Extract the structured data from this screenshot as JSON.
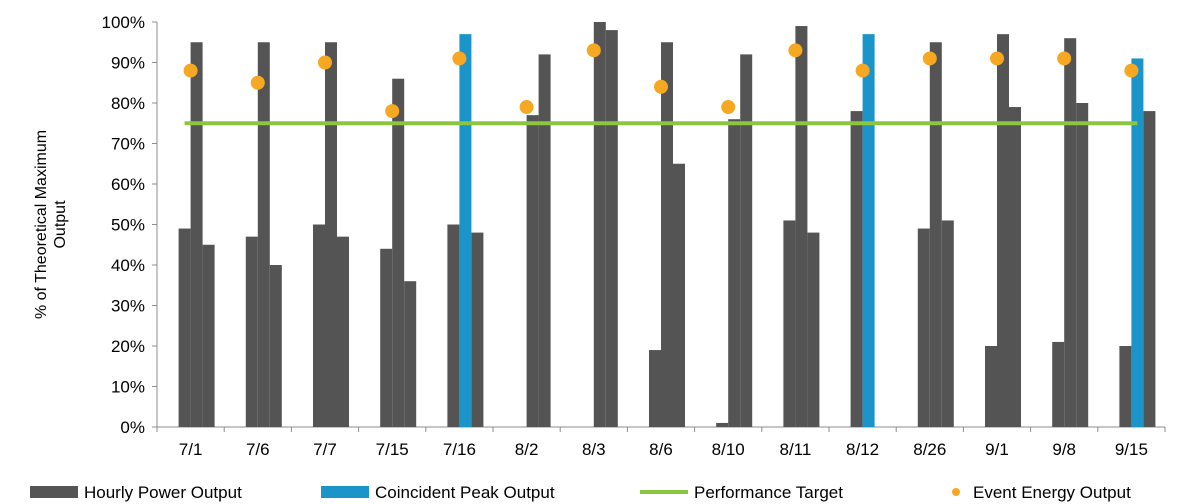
{
  "chart_data": {
    "type": "bar",
    "ylabel": "% of Theoretical Maximum Output",
    "ylim": [
      0,
      100
    ],
    "y_ticks": [
      "0%",
      "10%",
      "20%",
      "30%",
      "40%",
      "50%",
      "60%",
      "70%",
      "80%",
      "90%",
      "100%"
    ],
    "categories": [
      "7/1",
      "7/6",
      "7/7",
      "7/15",
      "7/16",
      "8/2",
      "8/3",
      "8/6",
      "8/10",
      "8/11",
      "8/12",
      "8/26",
      "9/1",
      "9/8",
      "9/15"
    ],
    "grid": false,
    "legend_position": "bottom",
    "colors": {
      "hourly": "#545454",
      "peak": "#1a94c9",
      "target": "#8cc63f",
      "event": "#f7a823"
    },
    "series": [
      {
        "name": "Hourly Power Output",
        "kind": "bar",
        "hours": [
          [
            49,
            95,
            45
          ],
          [
            47,
            95,
            40
          ],
          [
            50,
            95,
            47
          ],
          [
            44,
            86,
            36
          ],
          [
            50,
            null,
            48
          ],
          [
            null,
            77,
            92
          ],
          [
            null,
            100,
            98
          ],
          [
            19,
            95,
            65
          ],
          [
            1,
            76,
            92
          ],
          [
            51,
            99,
            48
          ],
          [
            78,
            null,
            null
          ],
          [
            49,
            95,
            51
          ],
          [
            20,
            97,
            79
          ],
          [
            21,
            96,
            80
          ],
          [
            20,
            null,
            78
          ]
        ]
      },
      {
        "name": "Coincident Peak Output",
        "kind": "bar",
        "points": [
          {
            "category": "7/16",
            "hour": 2,
            "value": 97
          },
          {
            "category": "8/12",
            "hour": 2,
            "value": 97
          },
          {
            "category": "9/15",
            "hour": 2,
            "value": 91
          }
        ]
      },
      {
        "name": "Performance Target",
        "kind": "line",
        "value": 75
      },
      {
        "name": "Event Energy Output",
        "kind": "scatter",
        "values": [
          88,
          85,
          90,
          78,
          91,
          79,
          93,
          84,
          79,
          93,
          88,
          91,
          91,
          91,
          88
        ]
      }
    ]
  }
}
